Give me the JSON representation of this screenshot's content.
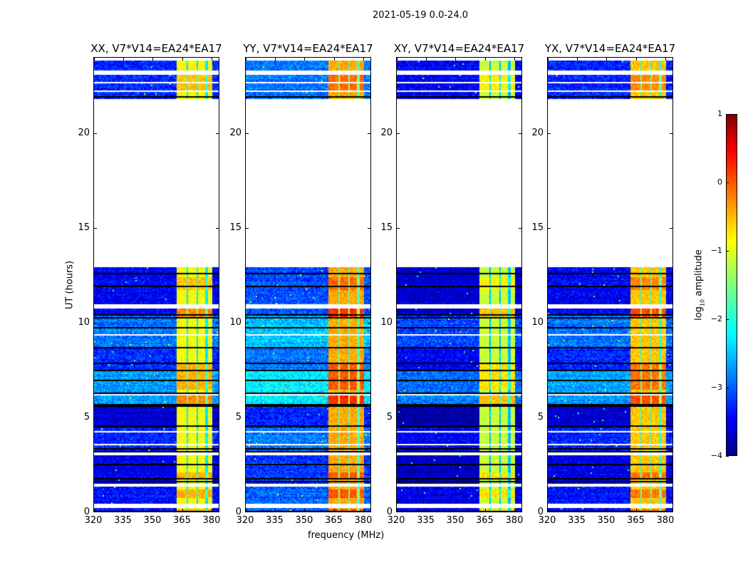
{
  "suptitle": "2021-05-19 0.0-24.0",
  "chart_data": {
    "type": "heatmap",
    "xlabel": "frequency (MHz)",
    "ylabel": "UT (hours)",
    "xlim": [
      320,
      384
    ],
    "ylim": [
      0,
      24
    ],
    "xticks": [
      "320",
      "335",
      "350",
      "365",
      "380"
    ],
    "xtick_values": [
      320,
      335,
      350,
      365,
      380
    ],
    "yticks": [
      "0",
      "5",
      "10",
      "15",
      "20"
    ],
    "ytick_values": [
      0,
      5,
      10,
      15,
      20
    ],
    "colormap": "jet",
    "colorbar": {
      "label": "log10 amplitude",
      "label_main": "log",
      "label_sub": "10",
      "label_rest": " amplitude",
      "range": [
        -4,
        1
      ],
      "ticks": [
        "1",
        "0",
        "−1",
        "−2",
        "−3",
        "−4"
      ],
      "tick_values": [
        1,
        0,
        -1,
        -2,
        -3,
        -4
      ]
    },
    "data_ranges_hours": [
      [
        0,
        13.0
      ],
      [
        21.85,
        24
      ]
    ],
    "flagged_white_hours": [
      [
        0.3,
        0.55
      ],
      [
        1.45,
        1.55
      ],
      [
        3.05,
        3.2
      ],
      [
        3.6,
        3.65
      ],
      [
        4.3,
        4.35
      ],
      [
        6.25,
        6.3
      ],
      [
        7.25,
        7.3
      ],
      [
        8.85,
        8.9
      ],
      [
        9.4,
        9.45
      ],
      [
        10.05,
        10.1
      ],
      [
        10.85,
        11.05
      ],
      [
        22.2,
        22.3
      ],
      [
        22.65,
        22.75
      ],
      [
        23.1,
        23.35
      ],
      [
        23.55,
        23.62
      ],
      [
        23.92,
        23.97
      ]
    ],
    "black_lines_hours": [
      0.1,
      1.7,
      1.85,
      2.6,
      3.3,
      3.45,
      4.65,
      5.65,
      5.75,
      6.35,
      7.0,
      7.55,
      7.9,
      8.75,
      9.8,
      10.3,
      10.45,
      11.95,
      12.65,
      21.95
    ],
    "rfi_band_mhz": [
      361.5,
      380
    ],
    "rfi_channel_edges_mhz": [
      367,
      372,
      377
    ],
    "background_blocks": [
      {
        "hours": [
          0,
          1.5
        ],
        "offset": -0.1
      },
      {
        "hours": [
          1.5,
          3.2
        ],
        "offset": -0.3
      },
      {
        "hours": [
          3.2,
          4.5
        ],
        "offset": 0.0
      },
      {
        "hours": [
          4.5,
          5.7
        ],
        "offset": -0.4
      },
      {
        "hours": [
          5.7,
          7.5
        ],
        "offset": 0.6
      },
      {
        "hours": [
          7.5,
          8.7
        ],
        "offset": 0.0
      },
      {
        "hours": [
          8.7,
          10.5
        ],
        "offset": 0.4
      },
      {
        "hours": [
          10.5,
          13
        ],
        "offset": -0.2
      },
      {
        "hours": [
          21.8,
          24
        ],
        "offset": 0.0
      }
    ],
    "band_boosts": [
      {
        "hours": [
          0,
          0.25
        ],
        "offset": 0.5
      },
      {
        "hours": [
          0.8,
          1.3
        ],
        "offset": 0.4
      },
      {
        "hours": [
          1.9,
          2.2
        ],
        "offset": 0.4
      },
      {
        "hours": [
          5.7,
          6.2
        ],
        "offset": 0.6
      },
      {
        "hours": [
          6.5,
          8.0
        ],
        "offset": 0.4
      },
      {
        "hours": [
          10.3,
          10.8
        ],
        "offset": 0.6
      },
      {
        "hours": [
          11.8,
          12.5
        ],
        "offset": 0.3
      },
      {
        "hours": [
          22.3,
          23.1
        ],
        "offset": 0.3
      }
    ],
    "panels": [
      {
        "title": "XX, V7*V14=EA24*EA17",
        "background_level": -3.2,
        "band_level": -0.9
      },
      {
        "title": "YY, V7*V14=EA24*EA17",
        "background_level": -2.8,
        "band_level": -0.45
      },
      {
        "title": "XY, V7*V14=EA24*EA17",
        "background_level": -3.4,
        "band_level": -1.15
      },
      {
        "title": "YX, V7*V14=EA24*EA17",
        "background_level": -3.2,
        "band_level": -0.6
      }
    ]
  }
}
